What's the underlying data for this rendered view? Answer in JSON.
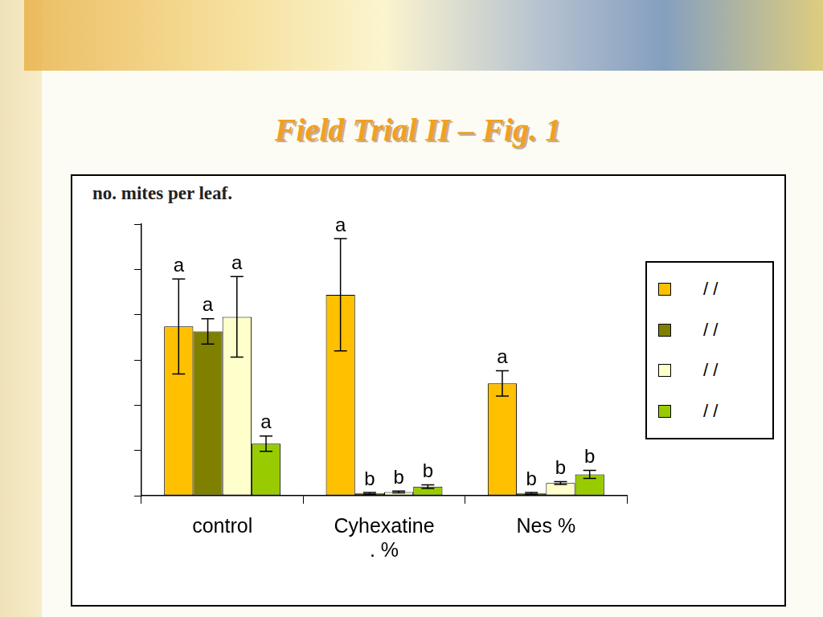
{
  "chart_data": {
    "type": "bar",
    "title": "Field Trial II – Fig. 1",
    "y_label": "no. mites per leaf.",
    "categories": [
      "control",
      [
        "Cyhexatine",
        ". %"
      ],
      "Nes %"
    ],
    "ylim": [
      0,
      60
    ],
    "yticks": [
      0,
      10,
      20,
      30,
      40,
      50,
      60
    ],
    "grid": false,
    "tick_labels": "x",
    "legend": "right",
    "series": [
      {
        "name": "/ /",
        "color": "#ffc000",
        "values": [
          37.4,
          44.4,
          24.8
        ],
        "errors": [
          10.5,
          12.4,
          2.8
        ],
        "letters": [
          "a",
          "a",
          "a"
        ]
      },
      {
        "name": "/ /",
        "color": "#808000",
        "values": [
          36.3,
          0.5,
          0.5
        ],
        "errors": [
          2.8,
          0.2,
          0.2
        ],
        "letters": [
          "a",
          "b",
          "b"
        ]
      },
      {
        "name": "/ /",
        "color": "#ffffcc",
        "values": [
          39.5,
          0.8,
          2.8
        ],
        "errors": [
          8.9,
          0.2,
          0.3
        ],
        "letters": [
          "a",
          "b",
          "b"
        ]
      },
      {
        "name": "/ /",
        "color": "#99cc00",
        "values": [
          11.5,
          2.0,
          4.7
        ],
        "errors": [
          1.7,
          0.4,
          0.9
        ],
        "letters": [
          "a",
          "b",
          "b"
        ]
      }
    ]
  }
}
